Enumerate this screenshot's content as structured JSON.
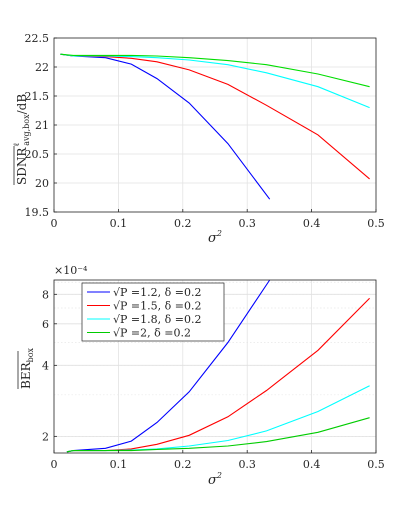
{
  "chart_data": [
    {
      "type": "line",
      "xlabel": "σ²",
      "ylabel": "SDNR_avg,box^ℓ /dB",
      "xlim": [
        0,
        0.5
      ],
      "ylim": [
        19.5,
        22.5
      ],
      "xticks": [
        "0",
        "0.1",
        "0.2",
        "0.3",
        "0.4",
        "0.5"
      ],
      "yticks": [
        "19.5",
        "20",
        "20.5",
        "21",
        "21.5",
        "22",
        "22.5"
      ],
      "grid": true,
      "series": [
        {
          "color": "#0000ff",
          "x": [
            0.01,
            0.03,
            0.08,
            0.12,
            0.16,
            0.21,
            0.27,
            0.335
          ],
          "y": [
            22.22,
            22.19,
            22.16,
            22.05,
            21.8,
            21.38,
            20.68,
            19.72
          ]
        },
        {
          "color": "#ff0000",
          "x": [
            0.01,
            0.03,
            0.08,
            0.12,
            0.16,
            0.21,
            0.27,
            0.33,
            0.41,
            0.49
          ],
          "y": [
            22.22,
            22.19,
            22.18,
            22.15,
            22.09,
            21.95,
            21.7,
            21.34,
            20.83,
            20.07
          ]
        },
        {
          "color": "#00ffff",
          "x": [
            0.01,
            0.03,
            0.08,
            0.12,
            0.16,
            0.21,
            0.27,
            0.33,
            0.41,
            0.49
          ],
          "y": [
            22.22,
            22.19,
            22.19,
            22.18,
            22.16,
            22.12,
            22.04,
            21.9,
            21.66,
            21.3
          ]
        },
        {
          "color": "#00dd00",
          "x": [
            0.01,
            0.03,
            0.08,
            0.12,
            0.16,
            0.21,
            0.27,
            0.33,
            0.41,
            0.49
          ],
          "y": [
            22.22,
            22.2,
            22.2,
            22.2,
            22.19,
            22.16,
            22.11,
            22.04,
            21.88,
            21.66
          ]
        }
      ]
    },
    {
      "type": "line",
      "xlabel": "σ²",
      "ylabel": "BER_box (overline)",
      "exponent_label": "×10⁻⁴",
      "yscale": "log",
      "xlim": [
        0,
        0.5
      ],
      "ylim": [
        1.7,
        9.2
      ],
      "xticks": [
        "0",
        "0.1",
        "0.2",
        "0.3",
        "0.4",
        "0.5"
      ],
      "yticks": [
        {
          "v": 2,
          "label": "2"
        },
        {
          "v": 4,
          "label": "4"
        },
        {
          "v": 6,
          "label": "6"
        },
        {
          "v": 8,
          "label": "8"
        }
      ],
      "grid": true,
      "legend_position": "top-left",
      "series": [
        {
          "name": "√P =1.2, δ =0.2",
          "color": "#0000ff",
          "x": [
            0.02,
            0.03,
            0.08,
            0.12,
            0.16,
            0.21,
            0.27,
            0.335
          ],
          "y": [
            1.72,
            1.74,
            1.78,
            1.91,
            2.29,
            3.09,
            5.0,
            9.2
          ]
        },
        {
          "name": "√P =1.5, δ =0.2",
          "color": "#ff0000",
          "x": [
            0.02,
            0.03,
            0.08,
            0.12,
            0.16,
            0.21,
            0.27,
            0.33,
            0.41,
            0.49
          ],
          "y": [
            1.72,
            1.74,
            1.74,
            1.77,
            1.85,
            2.02,
            2.42,
            3.13,
            4.63,
            7.7
          ]
        },
        {
          "name": "√P =1.8, δ =0.2",
          "color": "#00ffff",
          "x": [
            0.02,
            0.03,
            0.08,
            0.12,
            0.16,
            0.21,
            0.27,
            0.33,
            0.41,
            0.49
          ],
          "y": [
            1.72,
            1.74,
            1.74,
            1.75,
            1.77,
            1.82,
            1.92,
            2.11,
            2.55,
            3.28
          ]
        },
        {
          "name": "√P =2, δ =0.2",
          "color": "#00cc00",
          "x": [
            0.02,
            0.03,
            0.08,
            0.12,
            0.16,
            0.21,
            0.27,
            0.33,
            0.41,
            0.49
          ],
          "y": [
            1.72,
            1.74,
            1.74,
            1.74,
            1.76,
            1.78,
            1.82,
            1.9,
            2.08,
            2.4
          ]
        }
      ]
    }
  ]
}
